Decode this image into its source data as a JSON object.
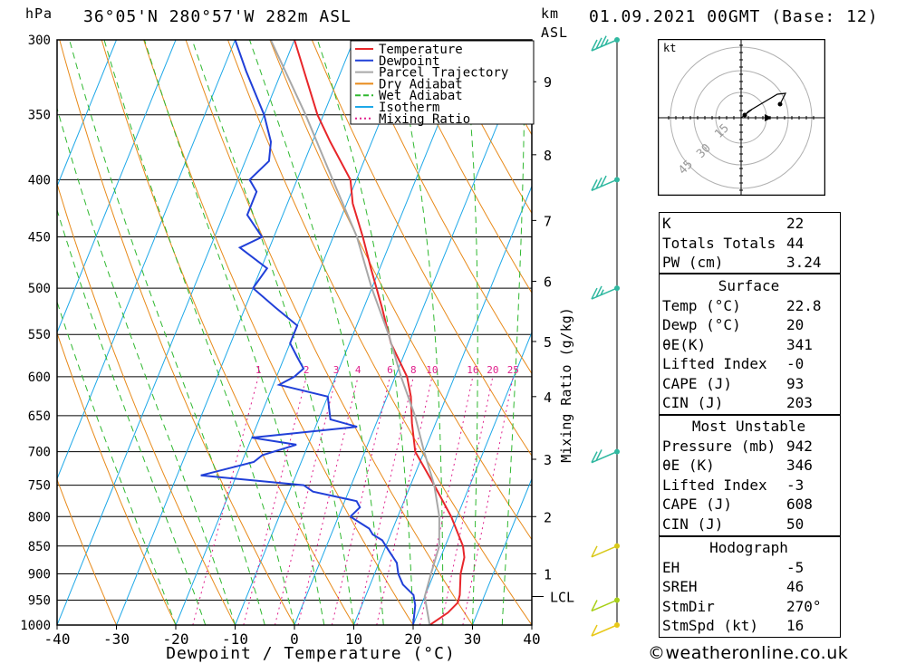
{
  "header": {
    "location": "36°05'N  280°57'W  282m  ASL",
    "datetime": "01.09.2021  00GMT  (Base: 12)",
    "hpa_unit": "hPa",
    "km_unit": "km",
    "asl_unit": "ASL"
  },
  "chart_data": {
    "type": "line",
    "xlabel": "Dewpoint / Temperature (°C)",
    "ylabel": "hPa",
    "right_label": "Mixing Ratio (g/kg)",
    "xlim": [
      -40,
      40
    ],
    "ylim": [
      1000,
      300
    ],
    "x_ticks": [
      -40,
      -30,
      -20,
      -10,
      0,
      10,
      20,
      30,
      40
    ],
    "pressure_ticks": [
      300,
      350,
      400,
      450,
      500,
      550,
      600,
      650,
      700,
      750,
      800,
      850,
      900,
      950,
      1000
    ],
    "km_ticks": [
      {
        "label": "9",
        "p": 327
      },
      {
        "label": "8",
        "p": 380
      },
      {
        "label": "7",
        "p": 435
      },
      {
        "label": "6",
        "p": 493
      },
      {
        "label": "5",
        "p": 558
      },
      {
        "label": "4",
        "p": 625
      },
      {
        "label": "3",
        "p": 711
      },
      {
        "label": "2",
        "p": 800
      },
      {
        "label": "1",
        "p": 900
      },
      {
        "label": "LCL",
        "p": 943
      }
    ],
    "mixing_ratio_labels": [
      "1",
      "2",
      "3",
      "4",
      "6",
      "8",
      "10",
      "16",
      "20",
      "25"
    ],
    "mixing_ratio_values": [
      1,
      2,
      3,
      4,
      6,
      8,
      10,
      16,
      20,
      25
    ],
    "legend": {
      "placement": "top",
      "entries": [
        {
          "label": "Temperature",
          "color": "#e8262a"
        },
        {
          "label": "Dewpoint",
          "color": "#2140d8"
        },
        {
          "label": "Parcel Trajectory",
          "color": "#a8a8a8"
        },
        {
          "label": "Dry Adiabat",
          "color": "#e88a1a"
        },
        {
          "label": "Wet Adiabat",
          "color": "#2fb82f"
        },
        {
          "label": "Isotherm",
          "color": "#1ea8e8"
        },
        {
          "label": "Mixing Ratio",
          "color": "#e0208c"
        }
      ]
    },
    "series": [
      {
        "name": "Temperature",
        "color": "#e8262a",
        "points": [
          [
            1000,
            22.8
          ],
          [
            975,
            25
          ],
          [
            955,
            26
          ],
          [
            940,
            25.8
          ],
          [
            900,
            24.5
          ],
          [
            870,
            24
          ],
          [
            850,
            23
          ],
          [
            800,
            19
          ],
          [
            750,
            14
          ],
          [
            700,
            8.5
          ],
          [
            660,
            6
          ],
          [
            625,
            4
          ],
          [
            600,
            2
          ],
          [
            560,
            -3
          ],
          [
            520,
            -7
          ],
          [
            480,
            -11.5
          ],
          [
            450,
            -15
          ],
          [
            420,
            -19
          ],
          [
            400,
            -21
          ],
          [
            370,
            -27
          ],
          [
            350,
            -31
          ],
          [
            300,
            -40
          ]
        ]
      },
      {
        "name": "Dewpoint",
        "color": "#2140d8",
        "points": [
          [
            1000,
            20
          ],
          [
            960,
            19
          ],
          [
            940,
            18
          ],
          [
            920,
            15.5
          ],
          [
            900,
            14
          ],
          [
            880,
            13
          ],
          [
            860,
            11
          ],
          [
            850,
            10
          ],
          [
            840,
            9
          ],
          [
            830,
            7
          ],
          [
            820,
            6
          ],
          [
            805,
            3
          ],
          [
            800,
            2
          ],
          [
            785,
            3
          ],
          [
            775,
            2
          ],
          [
            760,
            -6
          ],
          [
            750,
            -8
          ],
          [
            735,
            -26
          ],
          [
            715,
            -18
          ],
          [
            705,
            -17
          ],
          [
            690,
            -12
          ],
          [
            680,
            -20
          ],
          [
            665,
            -3
          ],
          [
            655,
            -8
          ],
          [
            640,
            -9
          ],
          [
            625,
            -10
          ],
          [
            610,
            -19
          ],
          [
            600,
            -17
          ],
          [
            590,
            -16
          ],
          [
            575,
            -18
          ],
          [
            560,
            -20
          ],
          [
            540,
            -20
          ],
          [
            520,
            -25
          ],
          [
            500,
            -30
          ],
          [
            480,
            -29
          ],
          [
            460,
            -35
          ],
          [
            450,
            -32
          ],
          [
            430,
            -36
          ],
          [
            410,
            -36
          ],
          [
            400,
            -38
          ],
          [
            385,
            -36
          ],
          [
            370,
            -37
          ],
          [
            350,
            -40
          ],
          [
            320,
            -46
          ],
          [
            300,
            -50
          ]
        ]
      },
      {
        "name": "Parcel Trajectory",
        "color": "#a8a8a8",
        "points": [
          [
            1000,
            22.8
          ],
          [
            943,
            20
          ],
          [
            900,
            19.5
          ],
          [
            850,
            19
          ],
          [
            800,
            17
          ],
          [
            750,
            14
          ],
          [
            700,
            10
          ],
          [
            650,
            6
          ],
          [
            600,
            1
          ],
          [
            550,
            -4
          ],
          [
            500,
            -10
          ],
          [
            450,
            -16
          ],
          [
            400,
            -24
          ],
          [
            350,
            -33
          ],
          [
            300,
            -44
          ]
        ]
      }
    ]
  },
  "hodograph": {
    "unit_label": "kt",
    "ring_labels": [
      "15",
      "30",
      "45"
    ]
  },
  "wind_barbs": [
    {
      "p": 300,
      "dir": 280,
      "speed_kt": 35,
      "color": "#2fb8a0"
    },
    {
      "p": 400,
      "dir": 280,
      "speed_kt": 30,
      "color": "#2fb8a0"
    },
    {
      "p": 500,
      "dir": 285,
      "speed_kt": 25,
      "color": "#2fb8a0"
    },
    {
      "p": 700,
      "dir": 290,
      "speed_kt": 20,
      "color": "#2fb8a0"
    },
    {
      "p": 850,
      "dir": 200,
      "speed_kt": 10,
      "color": "#d8c818"
    },
    {
      "p": 950,
      "dir": 190,
      "speed_kt": 10,
      "color": "#a8d018"
    },
    {
      "p": 1000,
      "dir": 170,
      "speed_kt": 10,
      "color": "#e8c818"
    }
  ],
  "indices": {
    "general": [
      {
        "label": "K",
        "value": "22"
      },
      {
        "label": "Totals Totals",
        "value": "44"
      },
      {
        "label": "PW (cm)",
        "value": "3.24"
      }
    ],
    "surface": {
      "title": "Surface",
      "rows": [
        {
          "label": "Temp (°C)",
          "value": "22.8"
        },
        {
          "label": "Dewp (°C)",
          "value": "20"
        },
        {
          "label": "θE(K)",
          "value": "341"
        },
        {
          "label": "Lifted Index",
          "value": "-0"
        },
        {
          "label": "CAPE (J)",
          "value": "93"
        },
        {
          "label": "CIN (J)",
          "value": "203"
        }
      ]
    },
    "most_unstable": {
      "title": "Most Unstable",
      "rows": [
        {
          "label": "Pressure (mb)",
          "value": "942"
        },
        {
          "label": "θE (K)",
          "value": "346"
        },
        {
          "label": "Lifted Index",
          "value": "-3"
        },
        {
          "label": "CAPE (J)",
          "value": "608"
        },
        {
          "label": "CIN (J)",
          "value": "50"
        }
      ]
    },
    "hodograph": {
      "title": "Hodograph",
      "rows": [
        {
          "label": "EH",
          "value": "-5"
        },
        {
          "label": "SREH",
          "value": "46"
        },
        {
          "label": "StmDir",
          "value": "270°"
        },
        {
          "label": "StmSpd (kt)",
          "value": "16"
        }
      ]
    }
  },
  "footer": {
    "copyright": "©weatheronline.co.uk"
  }
}
